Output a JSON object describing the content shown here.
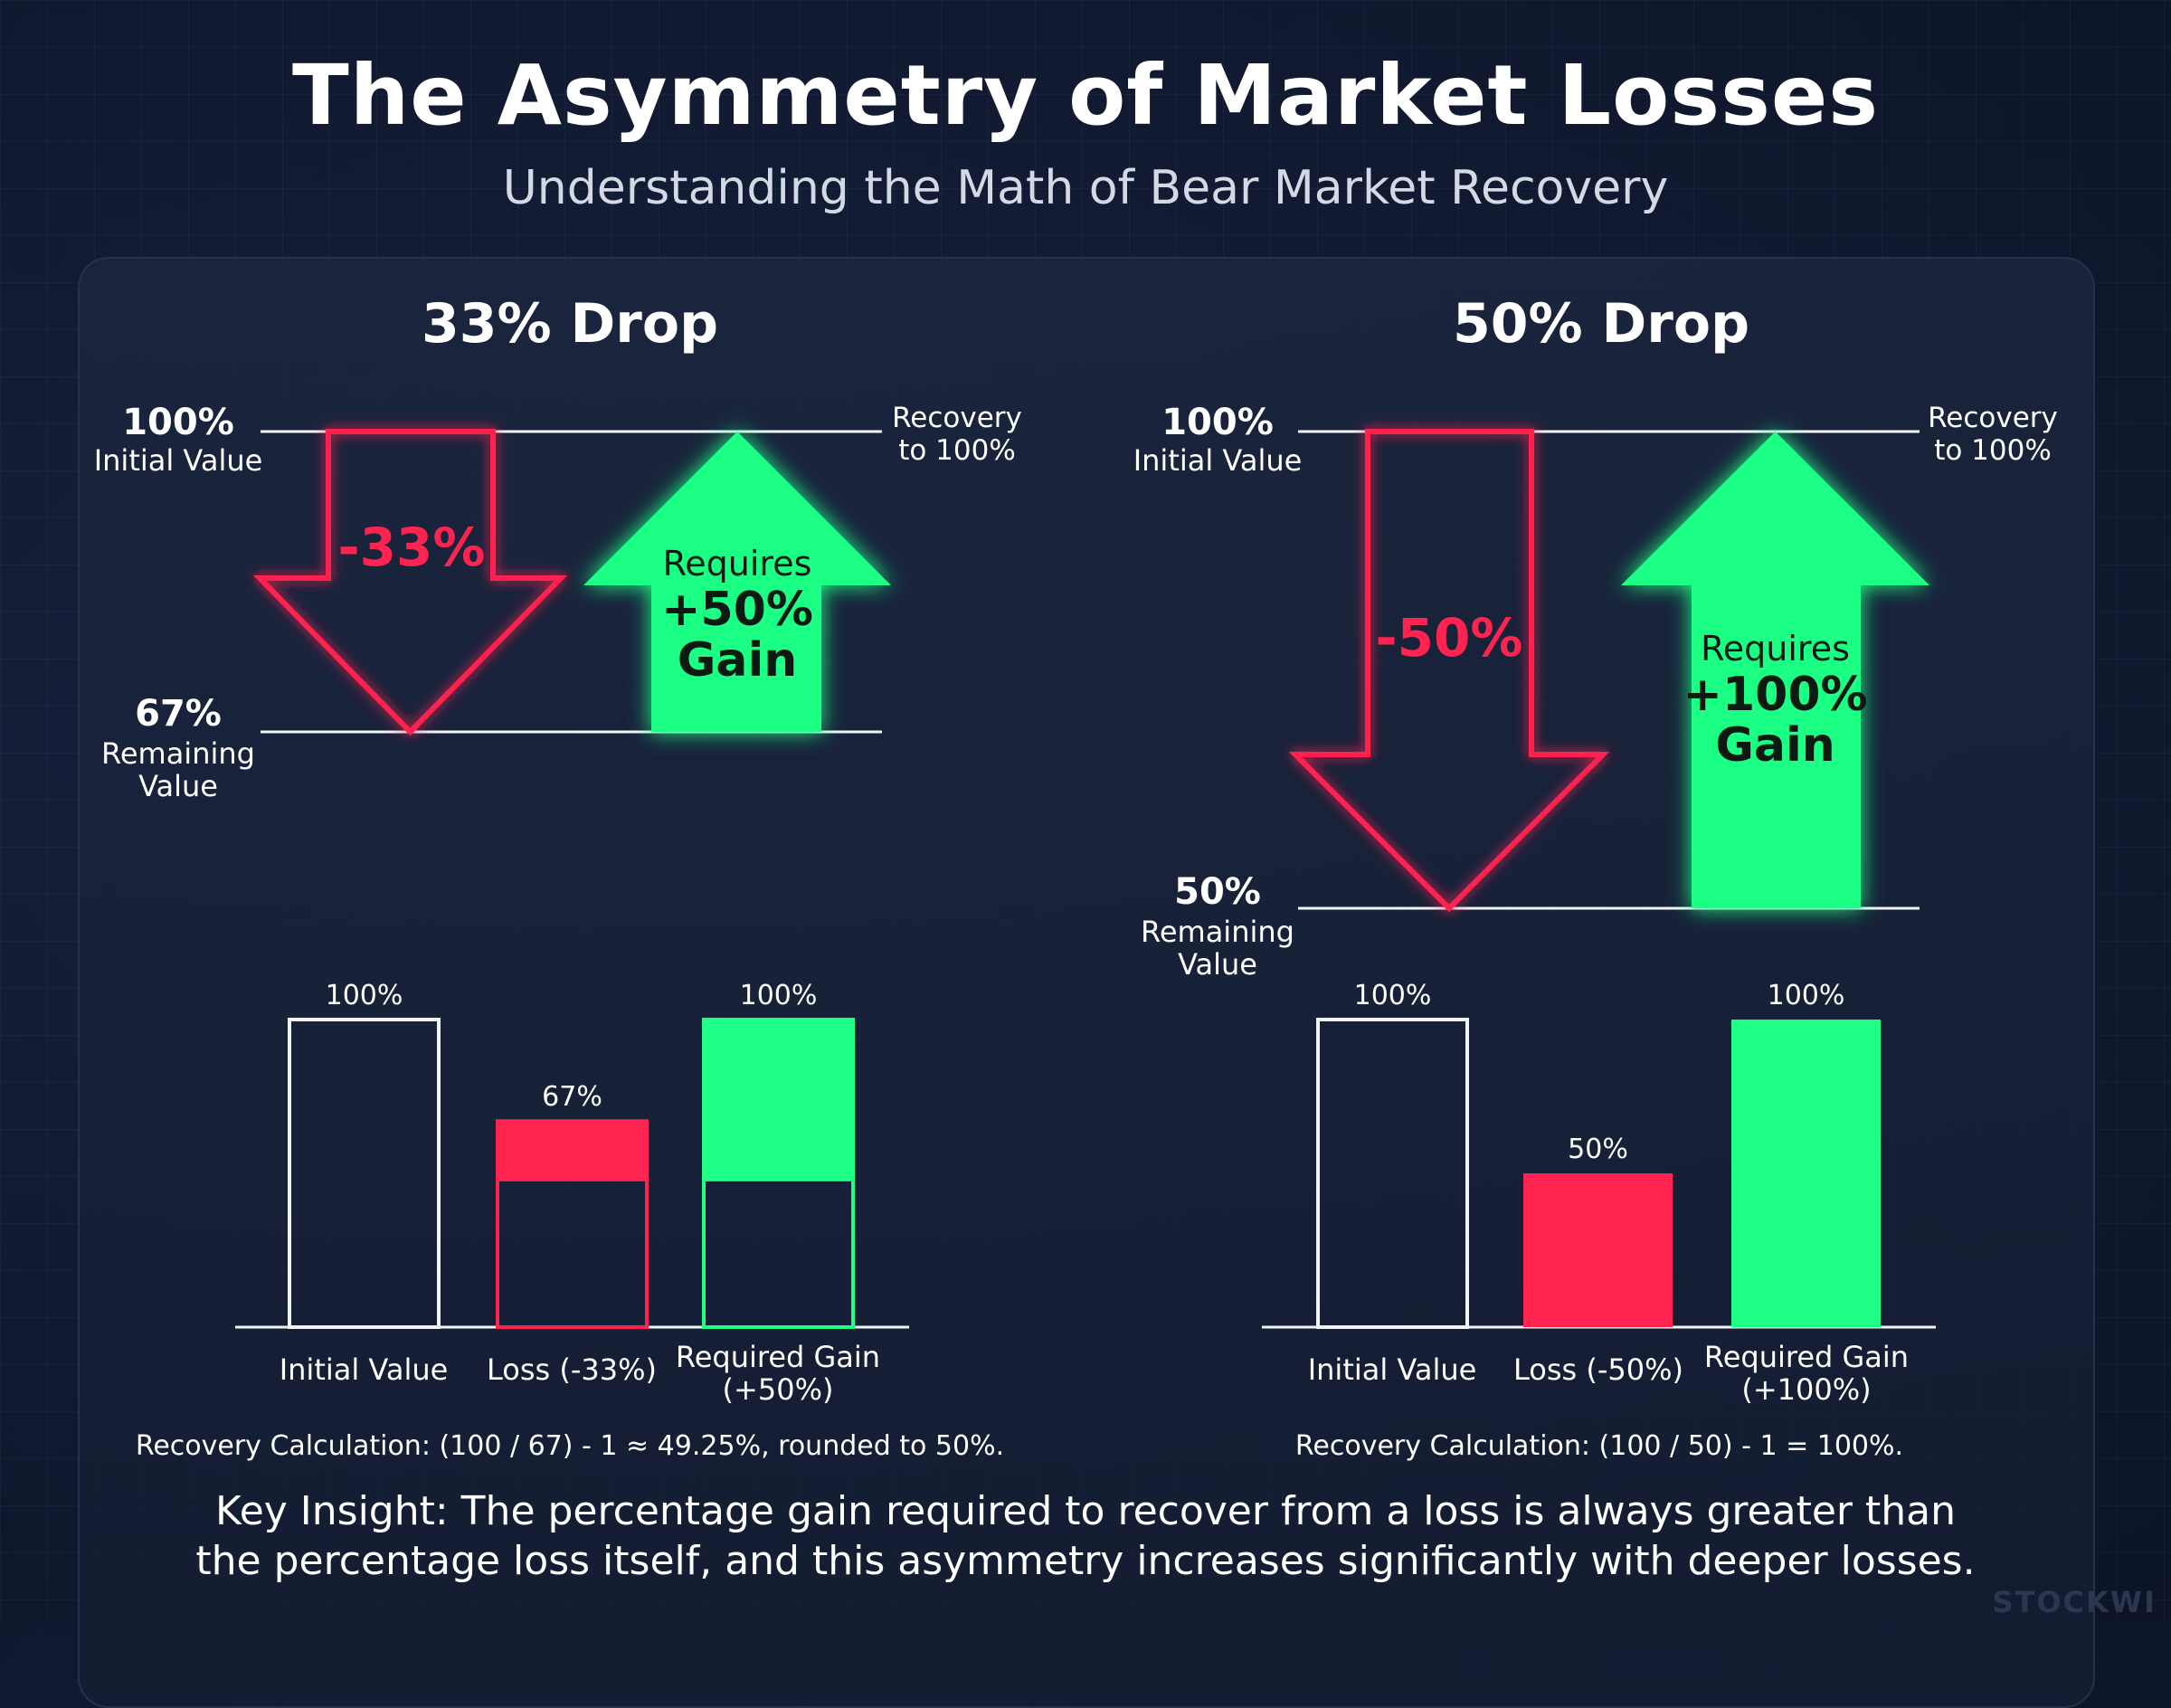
{
  "title": "The Asymmetry of Market Losses",
  "subtitle": "Understanding the Math of Bear Market Recovery",
  "colors": {
    "loss": "#ff2450",
    "gain": "#1dff85",
    "line": "#f2f4f8",
    "background": "#111a31"
  },
  "chart_data": [
    {
      "type": "bar",
      "title": "33% Drop",
      "top_label": {
        "value": "100%",
        "caption": "Initial Value"
      },
      "bottom_label": {
        "value": "67%",
        "caption": "Remaining Value"
      },
      "recovery_label": "Recovery to 100%",
      "drop_label": "-33%",
      "gain_label": {
        "line1": "Requires",
        "line2": "+50%",
        "line3": "Gain"
      },
      "loss_pct": 33,
      "required_gain_pct": 50,
      "categories": [
        "Initial Value",
        "Loss (-33%)",
        "Required Gain (+50%)"
      ],
      "values": [
        100,
        67,
        100
      ],
      "value_labels": [
        "100%",
        "67%",
        "100%"
      ],
      "ylim": [
        0,
        100
      ],
      "note": "Recovery Calculation: (100 / 67) - 1 ≈ 49.25%, rounded to 50%."
    },
    {
      "type": "bar",
      "title": "50% Drop",
      "top_label": {
        "value": "100%",
        "caption": "Initial Value"
      },
      "bottom_label": {
        "value": "50%",
        "caption": "Remaining Value"
      },
      "recovery_label": "Recovery to 100%",
      "drop_label": "-50%",
      "gain_label": {
        "line1": "Requires",
        "line2": "+100%",
        "line3": "Gain"
      },
      "loss_pct": 50,
      "required_gain_pct": 100,
      "categories": [
        "Initial Value",
        "Loss (-50%)",
        "Required Gain (+100%)"
      ],
      "values": [
        100,
        50,
        100
      ],
      "value_labels": [
        "100%",
        "50%",
        "100%"
      ],
      "ylim": [
        0,
        100
      ],
      "note": "Recovery Calculation: (100 / 50) - 1 = 100%."
    }
  ],
  "insight": "Key Insight: The percentage gain required to recover from a loss is always greater than the percentage loss itself, and this asymmetry increases significantly with deeper losses.",
  "watermark": "STOCKWI"
}
